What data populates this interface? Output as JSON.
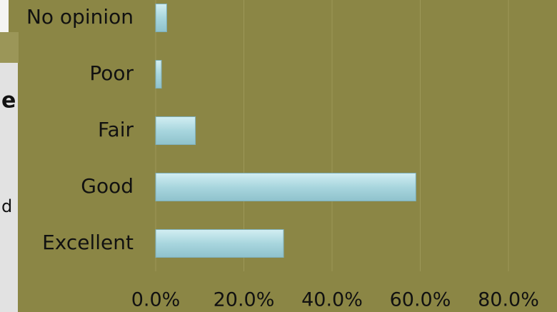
{
  "chart_data": {
    "type": "bar",
    "orientation": "horizontal",
    "categories": [
      "No opinion",
      "Poor",
      "Fair",
      "Good",
      "Excellent"
    ],
    "values": [
      2.5,
      1.3,
      9,
      59,
      29
    ],
    "color": "#a8d6de",
    "xlim": [
      0,
      80
    ],
    "xticks": [
      {
        "value": 0,
        "label": "0.0%"
      },
      {
        "value": 20,
        "label": "20.0%"
      },
      {
        "value": 40,
        "label": "40.0%"
      },
      {
        "value": 60,
        "label": "60.0%"
      },
      {
        "value": 80,
        "label": "80.0%"
      }
    ],
    "grid": true
  },
  "overlay_text": [
    "e",
    "d"
  ]
}
